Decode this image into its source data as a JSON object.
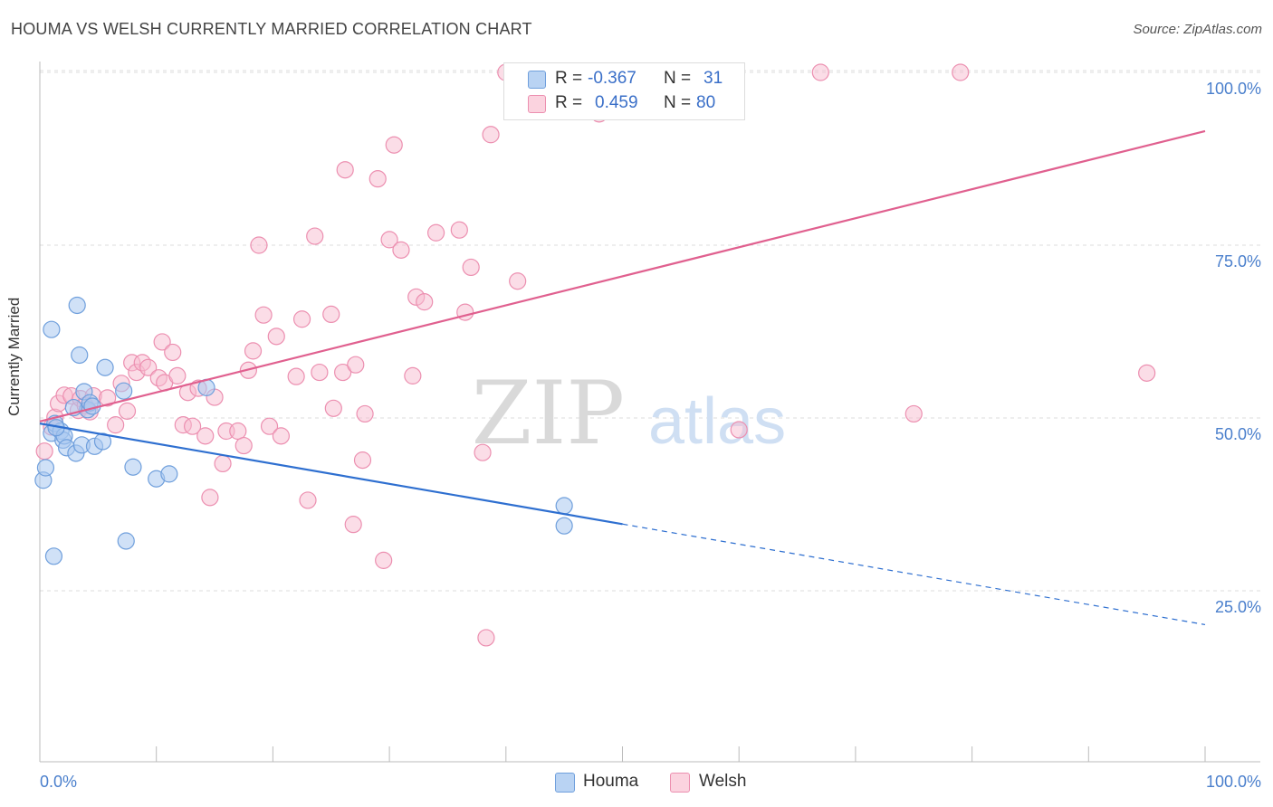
{
  "header": {
    "title": "HOUMA VS WELSH CURRENTLY MARRIED CORRELATION CHART",
    "source": "Source: ZipAtlas.com"
  },
  "watermark": {
    "zip": "ZIP",
    "atlas": "atlas"
  },
  "colors": {
    "houma_fill": "#a9c8f0",
    "houma_stroke": "#6f9fdc",
    "houma_line": "#2e6fd0",
    "welsh_fill": "#f7bcd0",
    "welsh_stroke": "#ec8fb0",
    "welsh_line": "#e0608f",
    "axis_label": "#4a7fcc",
    "grid": "#dddddd"
  },
  "legend": {
    "rows": [
      {
        "r_label": "R =",
        "r_value": "-0.367",
        "n_label": "N =",
        "n_value": "31"
      },
      {
        "r_label": "R =",
        "r_value": "0.459",
        "n_label": "N =",
        "n_value": "80"
      }
    ],
    "series": [
      {
        "name": "Houma"
      },
      {
        "name": "Welsh"
      }
    ]
  },
  "chart_data": {
    "type": "scatter",
    "title": "HOUMA VS WELSH CURRENTLY MARRIED CORRELATION CHART",
    "xlabel": "",
    "ylabel": "Currently Married",
    "xlim": [
      0,
      100
    ],
    "ylim": [
      0,
      102
    ],
    "x_tick_labels": [
      "0.0%",
      "100.0%"
    ],
    "y_ticks": [
      25,
      50,
      75,
      100
    ],
    "y_tick_labels": [
      "25.0%",
      "50.0%",
      "75.0%",
      "100.0%"
    ],
    "series": [
      {
        "name": "Houma",
        "r": -0.367,
        "n": 31,
        "trend": {
          "x0": 0,
          "y0": 49.2,
          "x1": 100,
          "y1": 20.1,
          "solid_until_x": 50
        },
        "points": [
          [
            0.3,
            41
          ],
          [
            0.5,
            42.8
          ],
          [
            1.2,
            30
          ],
          [
            1.0,
            47.8
          ],
          [
            1.3,
            49.2
          ],
          [
            1.0,
            62.8
          ],
          [
            1.8,
            48.1
          ],
          [
            2.0,
            46.8
          ],
          [
            2.1,
            47.4
          ],
          [
            2.3,
            45.7
          ],
          [
            3.1,
            44.9
          ],
          [
            3.2,
            66.3
          ],
          [
            3.4,
            59.1
          ],
          [
            3.6,
            46.1
          ],
          [
            3.8,
            53.8
          ],
          [
            4.1,
            51.2
          ],
          [
            4.3,
            52.2
          ],
          [
            4.5,
            51.7
          ],
          [
            4.7,
            45.9
          ],
          [
            5.4,
            46.6
          ],
          [
            5.6,
            57.3
          ],
          [
            7.2,
            53.9
          ],
          [
            7.4,
            32.2
          ],
          [
            8.0,
            42.9
          ],
          [
            10.0,
            41.2
          ],
          [
            11.1,
            41.9
          ],
          [
            14.3,
            54.4
          ],
          [
            2.9,
            51.5
          ],
          [
            1.4,
            48.6
          ],
          [
            45.0,
            37.3
          ],
          [
            45.0,
            34.4
          ]
        ]
      },
      {
        "name": "Welsh",
        "r": 0.459,
        "n": 80,
        "trend": {
          "x0": 0,
          "y0": 49.5,
          "x1": 100,
          "y1": 91.5
        },
        "points": [
          [
            0.4,
            45.2
          ],
          [
            1.0,
            48.7
          ],
          [
            1.3,
            50.1
          ],
          [
            1.6,
            52.1
          ],
          [
            2.1,
            53.3
          ],
          [
            2.7,
            53.2
          ],
          [
            3.3,
            51.1
          ],
          [
            3.5,
            52.8
          ],
          [
            3.9,
            51.8
          ],
          [
            4.3,
            50.9
          ],
          [
            4.6,
            53.2
          ],
          [
            5.8,
            52.9
          ],
          [
            6.5,
            49.0
          ],
          [
            7.0,
            55.0
          ],
          [
            7.5,
            51.0
          ],
          [
            7.9,
            58.0
          ],
          [
            8.3,
            56.6
          ],
          [
            8.8,
            58.0
          ],
          [
            9.3,
            57.3
          ],
          [
            10.2,
            55.8
          ],
          [
            10.5,
            61.0
          ],
          [
            10.7,
            55.1
          ],
          [
            11.4,
            59.5
          ],
          [
            11.8,
            56.1
          ],
          [
            12.3,
            49.0
          ],
          [
            12.7,
            53.7
          ],
          [
            13.1,
            48.8
          ],
          [
            13.6,
            54.3
          ],
          [
            14.2,
            47.4
          ],
          [
            14.6,
            38.5
          ],
          [
            15.0,
            53.0
          ],
          [
            15.7,
            43.4
          ],
          [
            16.0,
            48.1
          ],
          [
            17.0,
            48.1
          ],
          [
            17.5,
            46.0
          ],
          [
            17.9,
            56.9
          ],
          [
            18.3,
            59.7
          ],
          [
            18.8,
            75.0
          ],
          [
            19.2,
            64.9
          ],
          [
            19.7,
            48.8
          ],
          [
            20.3,
            61.8
          ],
          [
            20.7,
            47.4
          ],
          [
            22.0,
            56.0
          ],
          [
            22.5,
            64.3
          ],
          [
            23.0,
            38.1
          ],
          [
            23.6,
            76.3
          ],
          [
            24.0,
            56.6
          ],
          [
            25.0,
            65.0
          ],
          [
            25.2,
            51.4
          ],
          [
            26.0,
            56.6
          ],
          [
            26.2,
            85.9
          ],
          [
            26.9,
            34.6
          ],
          [
            27.1,
            57.7
          ],
          [
            27.7,
            43.9
          ],
          [
            27.9,
            50.6
          ],
          [
            29.0,
            84.6
          ],
          [
            29.5,
            29.4
          ],
          [
            30.0,
            75.8
          ],
          [
            30.4,
            89.5
          ],
          [
            31.0,
            74.3
          ],
          [
            32.0,
            56.1
          ],
          [
            32.3,
            67.5
          ],
          [
            33.0,
            66.8
          ],
          [
            34.0,
            76.8
          ],
          [
            36.0,
            77.2
          ],
          [
            36.5,
            65.3
          ],
          [
            37.0,
            71.8
          ],
          [
            38.0,
            45.0
          ],
          [
            38.3,
            18.2
          ],
          [
            38.7,
            91.0
          ],
          [
            40.0,
            100
          ],
          [
            41.0,
            69.8
          ],
          [
            45.0,
            100
          ],
          [
            48.0,
            94.0
          ],
          [
            54.0,
            100
          ],
          [
            60.0,
            48.3
          ],
          [
            67.0,
            100
          ],
          [
            75.0,
            50.6
          ],
          [
            79.0,
            100
          ],
          [
            95.0,
            56.5
          ]
        ]
      }
    ]
  }
}
